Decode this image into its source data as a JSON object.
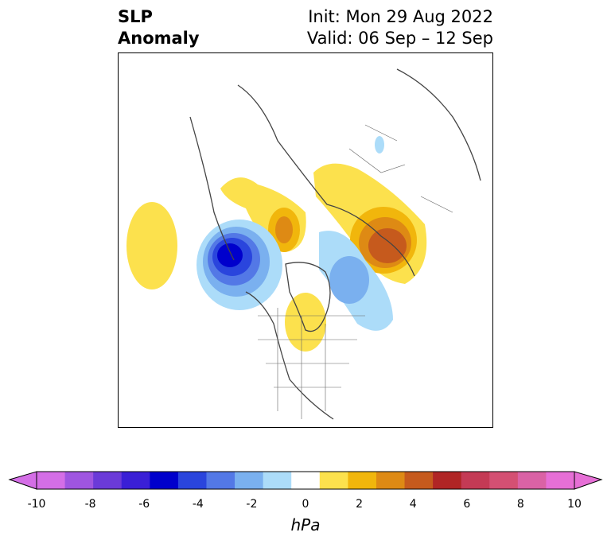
{
  "title": {
    "left_line1": "SLP",
    "left_line2": "Anomaly",
    "init": "Init: Mon 29 Aug 2022",
    "valid": "Valid: 06 Sep – 12 Sep"
  },
  "colorbar": {
    "label": "hPa",
    "ticks": [
      "-10",
      "-8",
      "-6",
      "-4",
      "-2",
      "0",
      "2",
      "4",
      "6",
      "8",
      "10"
    ],
    "colors": [
      "#d46ee6",
      "#9f55e0",
      "#6b3ad8",
      "#3a1fd6",
      "#0000cc",
      "#2a45dd",
      "#5378e6",
      "#7ab0ef",
      "#acdcf9",
      "#ffffff",
      "#fce14d",
      "#f1b60c",
      "#de8a14",
      "#c65a1d",
      "#b02525",
      "#c43a55",
      "#d45073",
      "#da62a5",
      "#e66fd6"
    ],
    "extend_low_color": "#d46ee6",
    "extend_high_color": "#e66fd6"
  }
}
